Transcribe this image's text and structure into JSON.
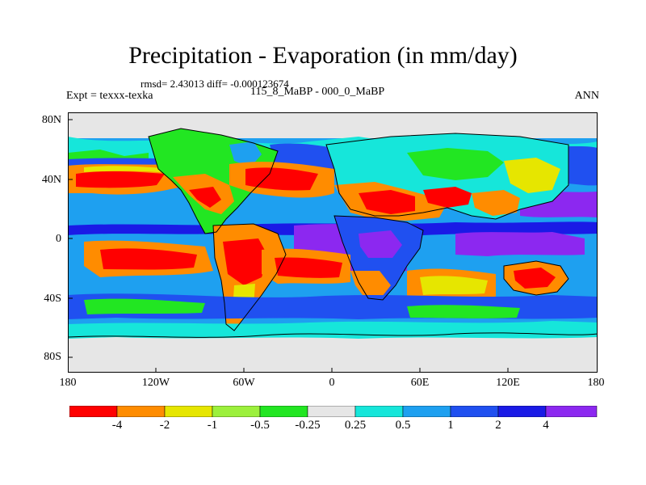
{
  "title": "Precipitation - Evaporation (in mm/day)",
  "stats": "rmsd= 2.43013 diff= -0.000123674",
  "expt": "Expt = texxx-texka",
  "case": "115_8_MaBP - 000_0_MaBP",
  "season": "ANN",
  "lat_labels": [
    "80N",
    "40N",
    "0",
    "40S",
    "80S"
  ],
  "lon_labels": [
    "180",
    "120W",
    "60W",
    "0",
    "60E",
    "120E",
    "180"
  ],
  "colorbar": {
    "labels": [
      "-4",
      "-2",
      "-1",
      "-0.5",
      "-0.25",
      "0.25",
      "0.5",
      "1",
      "2",
      "4"
    ],
    "colors": [
      "#ff0000",
      "#ff8c00",
      "#e6e600",
      "#9cf03c",
      "#22e622",
      "#e6e6e6",
      "#16e6da",
      "#1ea0f0",
      "#2050f0",
      "#1a1ae6",
      "#8c28f0"
    ]
  },
  "map_colors": {
    "land_dry": "#ff0000",
    "orange": "#ff8c00",
    "yellow": "#e6e600",
    "green": "#22e622",
    "gray": "#e6e6e6",
    "cyan": "#16e6da",
    "light_blue": "#1ea0f0",
    "blue": "#2050f0",
    "dark_blue": "#1a1ae6",
    "purple": "#8c28f0"
  }
}
